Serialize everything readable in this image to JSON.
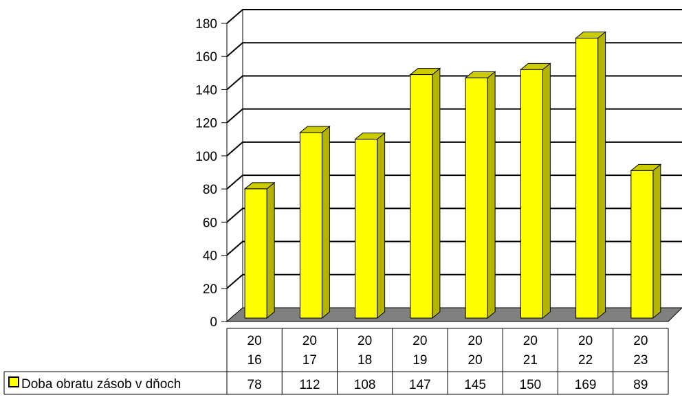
{
  "chart_data": {
    "type": "bar",
    "title": "",
    "xlabel": "",
    "ylabel": "",
    "categories": [
      [
        "20",
        "16"
      ],
      [
        "20",
        "17"
      ],
      [
        "20",
        "18"
      ],
      [
        "20",
        "19"
      ],
      [
        "20",
        "20"
      ],
      [
        "20",
        "21"
      ],
      [
        "20",
        "22"
      ],
      [
        "20",
        "23"
      ]
    ],
    "series": [
      {
        "name": "Doba obratu zásob v dňoch",
        "values": [
          78,
          112,
          108,
          147,
          145,
          150,
          169,
          89
        ],
        "color": "#FFFF00"
      }
    ],
    "ylim": [
      0,
      180
    ],
    "yticks": [
      "0",
      "20",
      "40",
      "60",
      "80",
      "100",
      "120",
      "140",
      "160",
      "180"
    ],
    "grid": true,
    "style": "3d-column",
    "legend": "data-table-bottom",
    "colors": {
      "bar_front": "#FFFF00",
      "bar_side": "#B3B300",
      "bar_top": "#CCCC00",
      "floor": "#808080",
      "outline": "#000000"
    }
  }
}
